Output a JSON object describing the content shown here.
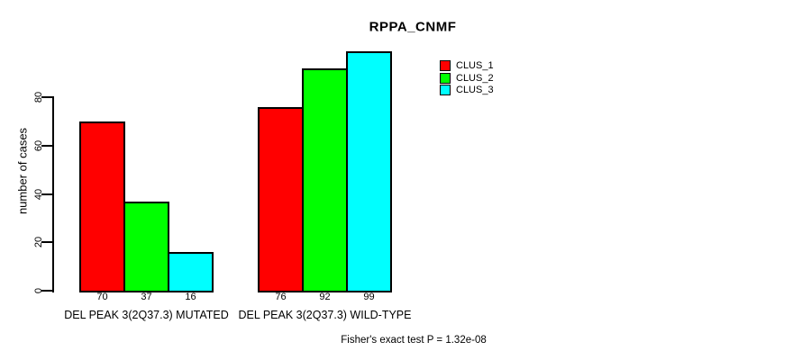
{
  "page": {
    "background": "#ffffff",
    "text_color": "#000000"
  },
  "chart_data": {
    "type": "bar",
    "title": "RPPA_CNMF",
    "xlabel": "",
    "ylabel": "number of cases",
    "ylim": [
      0,
      100
    ],
    "yticks": [
      0,
      20,
      40,
      60,
      80
    ],
    "grid": false,
    "legend_position": "top-right",
    "categories": [
      "DEL PEAK 3(2Q37.3) MUTATED",
      "DEL PEAK 3(2Q37.3) WILD-TYPE"
    ],
    "series": [
      {
        "name": "CLUS_1",
        "color": "#ff0000",
        "values": [
          70,
          76
        ]
      },
      {
        "name": "CLUS_2",
        "color": "#00ff00",
        "values": [
          37,
          92
        ]
      },
      {
        "name": "CLUS_3",
        "color": "#00ffff",
        "values": [
          16,
          99
        ]
      }
    ],
    "show_bar_values": true,
    "bar_border_color": "#000000",
    "axis_color": "#000000",
    "annotation": "Fisher's exact test P = 1.32e-08"
  }
}
